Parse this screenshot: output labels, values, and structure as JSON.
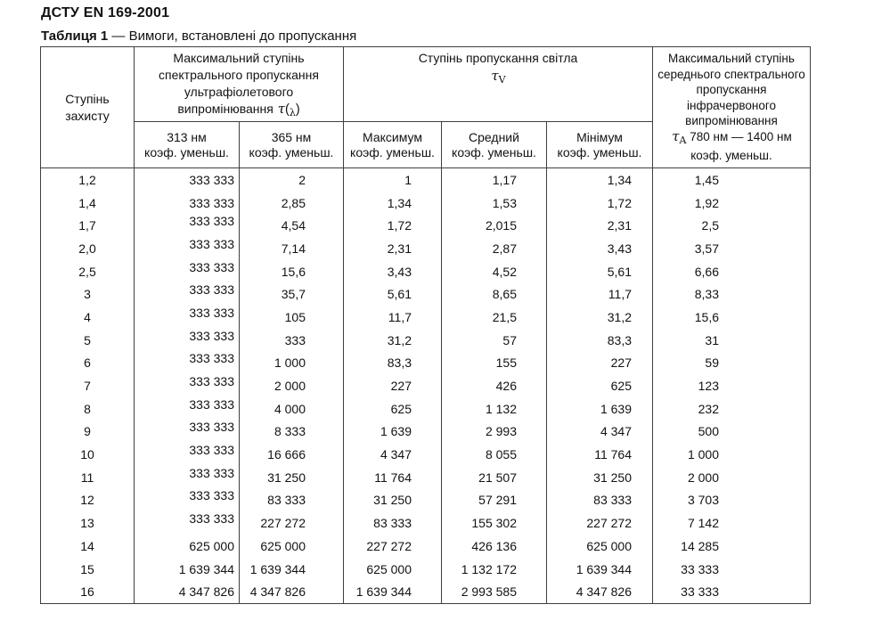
{
  "page": {
    "doc_title": "ДСТУ EN 169-2001",
    "caption_label": "Таблиця 1",
    "caption_text": " — Вимоги, встановлені до пропускання"
  },
  "table": {
    "protection_header": {
      "line1": "Ступінь",
      "line2": "захисту"
    },
    "uv_header": {
      "lines": [
        "Максимальний ступінь",
        "спектрального пропускання",
        "ультрафіолетового",
        "випромінювання"
      ],
      "tau": "τ",
      "paren_open": "(",
      "lambda": "λ",
      "paren_close": ")"
    },
    "light_header": {
      "title": "Ступінь пропускання світла",
      "tau": "τ",
      "tau_sub": "V"
    },
    "ir_header": {
      "lines": [
        "Максимальний ступінь",
        "середнього спектрального",
        "пропускання",
        "інфрачервоного",
        "випромінювання"
      ],
      "tau": "τ",
      "tau_sub": "A",
      "tau_rest": " 780 нм — 1400 нм",
      "last_line": "коэф. уменьш."
    },
    "subheaders": [
      {
        "line1": "313 нм",
        "line2": "коэф. уменьш."
      },
      {
        "line1": "365 нм",
        "line2": "коэф. уменьш."
      },
      {
        "line1": "Максимум",
        "line2": "коэф. уменьш."
      },
      {
        "line1": "Средний",
        "line2": "коэф. уменьш."
      },
      {
        "line1": "Мінімум",
        "line2": "коэф. уменьш."
      }
    ],
    "rows": [
      [
        "1,2",
        "333 333",
        "2",
        "1",
        "1,17",
        "1,34",
        "1,45"
      ],
      [
        "1,4",
        "333 333",
        "2,85",
        "1,34",
        "1,53",
        "1,72",
        "1,92"
      ],
      [
        "1,7",
        "333 333",
        "4,54",
        "1,72",
        "2,015",
        "2,31",
        "2,5"
      ],
      [
        "2,0",
        "333 333",
        "7,14",
        "2,31",
        "2,87",
        "3,43",
        "3,57"
      ],
      [
        "2,5",
        "333 333",
        "15,6",
        "3,43",
        "4,52",
        "5,61",
        "6,66"
      ],
      [
        "3",
        "333 333",
        "35,7",
        "5,61",
        "8,65",
        "11,7",
        "8,33"
      ],
      [
        "4",
        "333 333",
        "105",
        "11,7",
        "21,5",
        "31,2",
        "15,6"
      ],
      [
        "5",
        "333 333",
        "333",
        "31,2",
        "57",
        "83,3",
        "31"
      ],
      [
        "6",
        "333 333",
        "1 000",
        "83,3",
        "155",
        "227",
        "59"
      ],
      [
        "7",
        "333 333",
        "2 000",
        "227",
        "426",
        "625",
        "123"
      ],
      [
        "8",
        "333 333",
        "4 000",
        "625",
        "1 132",
        "1 639",
        "232"
      ],
      [
        "9",
        "333 333",
        "8 333",
        "1 639",
        "2 993",
        "4 347",
        "500"
      ],
      [
        "10",
        "333 333",
        "16 666",
        "4 347",
        "8 055",
        "11 764",
        "1 000"
      ],
      [
        "11",
        "333 333",
        "31 250",
        "11 764",
        "21 507",
        "31 250",
        "2 000"
      ],
      [
        "12",
        "333 333",
        "83 333",
        "31 250",
        "57 291",
        "83 333",
        "3 703"
      ],
      [
        "13",
        "333 333",
        "227 272",
        "83 333",
        "155 302",
        "227 272",
        "7 142"
      ],
      [
        "14",
        "625 000",
        "625 000",
        "227 272",
        "426 136",
        "625 000",
        "14 285"
      ],
      [
        "15",
        "1 639 344",
        "1 639 344",
        "625 000",
        "1 132 172",
        "1 639 344",
        "33 333"
      ],
      [
        "16",
        "4 347 826",
        "4 347 826",
        "1 639 344",
        "2 993 585",
        "4 347 826",
        "33 333"
      ]
    ],
    "raised_row_indices": [
      2,
      3,
      4,
      5,
      6,
      7,
      8,
      9,
      10,
      11,
      12,
      13,
      14,
      15
    ]
  }
}
